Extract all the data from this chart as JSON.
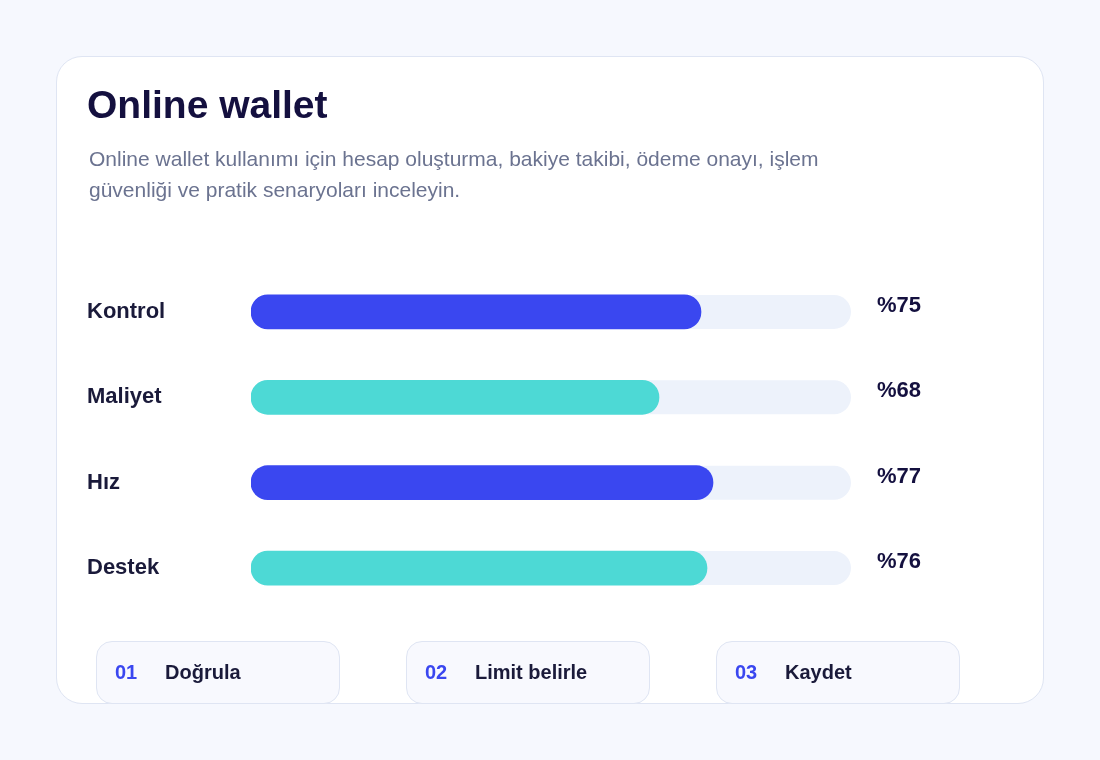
{
  "chart_data": {
    "type": "bar",
    "orientation": "horizontal",
    "title": "Online wallet",
    "subtitle": "Online wallet kullanımı için hesap oluşturma, bakiye takibi, ödeme onayı, işlem güvenliği ve pratik senaryoları inceleyin.",
    "categories": [
      "Kontrol",
      "Maliyet",
      "Hız",
      "Destek"
    ],
    "values": [
      75,
      68,
      77,
      76
    ],
    "colors": [
      "#3a47f0",
      "#4dd9d5",
      "#3a47f0",
      "#4dd9d5"
    ],
    "value_labels": [
      "%75",
      "%68",
      "%77",
      "%76"
    ],
    "xlim": [
      0,
      100
    ],
    "grid": false,
    "legend": false,
    "tick_labels": "y",
    "annotations": [
      "01 Doğrula",
      "02 Limit belirle",
      "03 Kaydet"
    ]
  }
}
